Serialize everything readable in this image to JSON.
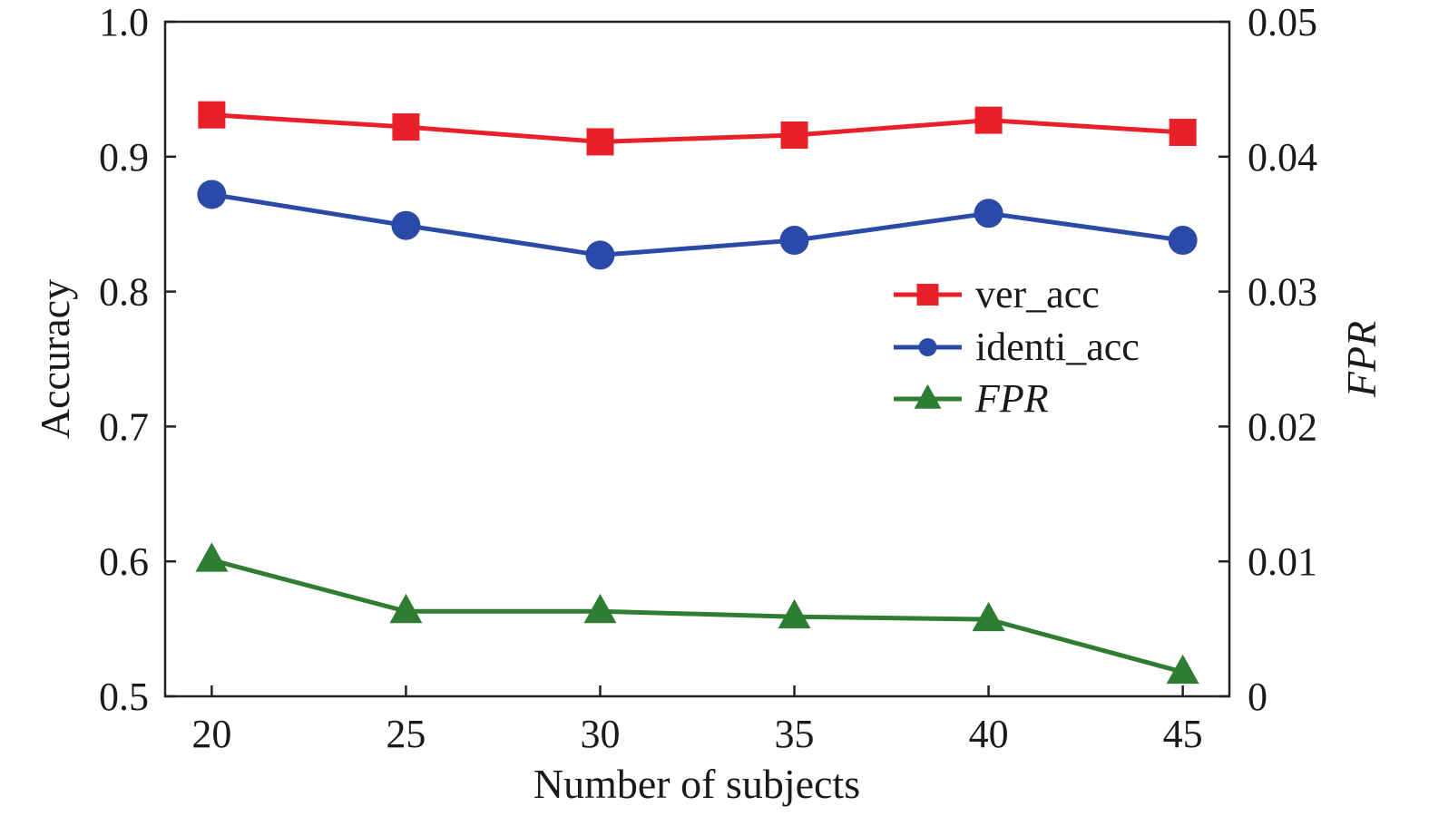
{
  "chart_data": {
    "type": "line",
    "title": "",
    "xlabel": "Number of subjects",
    "ylabel_left": "Accuracy",
    "ylabel_right": "FPR",
    "x": [
      20,
      25,
      30,
      35,
      40,
      45
    ],
    "x_ticks": [
      "20",
      "25",
      "30",
      "35",
      "40",
      "45"
    ],
    "xlim": [
      18.8,
      46.2
    ],
    "ylim_left": [
      0.5,
      1.0
    ],
    "ylim_right": [
      0,
      0.05
    ],
    "left_ticks": [
      "0.5",
      "0.6",
      "0.7",
      "0.8",
      "0.9",
      "1.0"
    ],
    "left_tick_values": [
      0.5,
      0.6,
      0.7,
      0.8,
      0.9,
      1.0
    ],
    "right_ticks": [
      "0",
      "0.01",
      "0.02",
      "0.03",
      "0.04",
      "0.05"
    ],
    "right_tick_values": [
      0,
      0.01,
      0.02,
      0.03,
      0.04,
      0.05
    ],
    "grid": false,
    "legend_position": "center-right",
    "series": [
      {
        "name": "ver_acc",
        "axis": "left",
        "marker": "square",
        "color": "#e8202a",
        "values": [
          0.931,
          0.922,
          0.911,
          0.916,
          0.927,
          0.918
        ]
      },
      {
        "name": "identi_acc",
        "axis": "left",
        "marker": "circle",
        "color": "#2b4aa8",
        "values": [
          0.872,
          0.849,
          0.827,
          0.838,
          0.858,
          0.838
        ]
      },
      {
        "name": "FPR",
        "axis": "right",
        "marker": "triangle",
        "color": "#2e7d32",
        "italic": true,
        "values": [
          0.0101,
          0.0063,
          0.0063,
          0.0059,
          0.0057,
          0.0018
        ]
      }
    ]
  }
}
